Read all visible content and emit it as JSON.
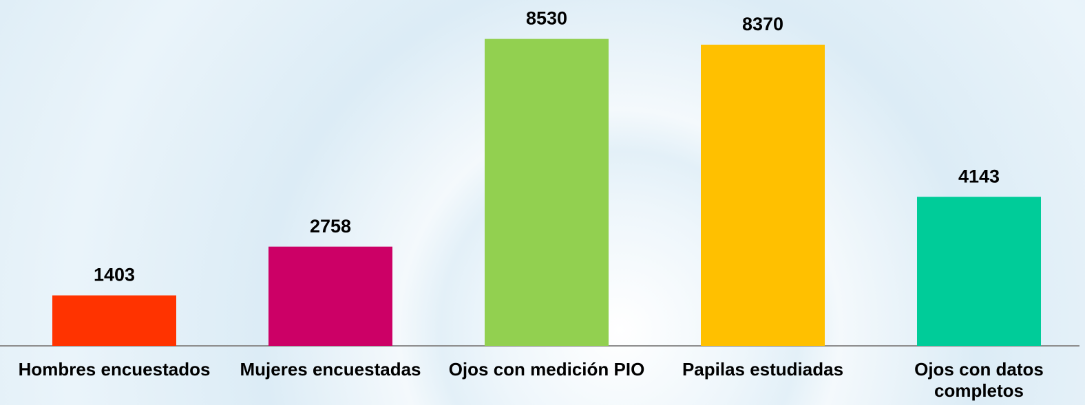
{
  "chart_data": {
    "type": "bar",
    "categories": [
      "Hombres encuestados",
      "Mujeres encuestadas",
      "Ojos con medición PIO",
      "Papilas estudiadas",
      "Ojos con datos completos"
    ],
    "values": [
      1403,
      2758,
      8530,
      8370,
      4143
    ],
    "colors": [
      "#ff3300",
      "#cc0066",
      "#92d050",
      "#ffc000",
      "#00cc99"
    ],
    "ylim": [
      0,
      9000
    ]
  }
}
